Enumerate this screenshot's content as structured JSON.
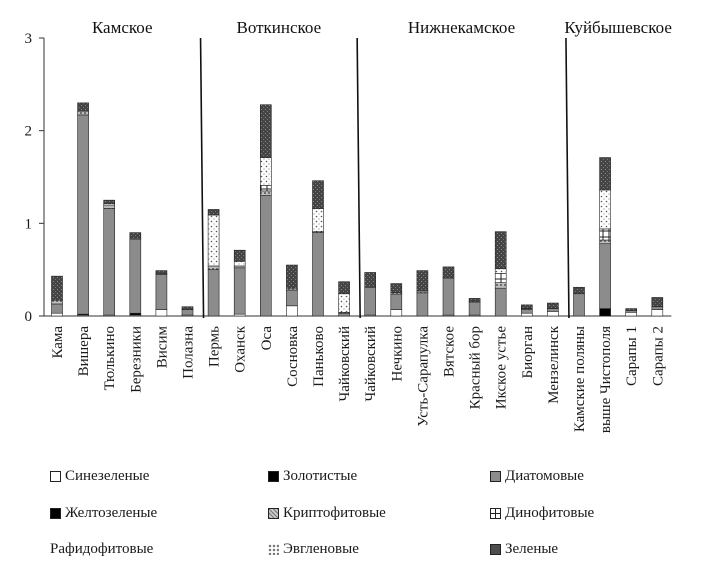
{
  "chart_data": {
    "type": "bar",
    "stacked": true,
    "ylim": [
      0,
      3
    ],
    "yticks": [
      0,
      1,
      2,
      3
    ],
    "categories": [
      "Кама",
      "Вишера",
      "Тюлькино",
      "Березники",
      "Висим",
      "Полазна",
      "Пермь",
      "Оханск",
      "Оса",
      "Сосновка",
      "Паньково",
      "Чайковский",
      "Чайковский",
      "Нечкино",
      "Усть-Сарапулка",
      "Вятское",
      "Красный бор",
      "Икское устье",
      "Биорган",
      "Мензелинск",
      "Камские поляны",
      "выше Чистополя",
      "Сарапы 1",
      "Сарапы 2"
    ],
    "reservoirs": [
      {
        "name": "Камское",
        "start": 0,
        "end": 5
      },
      {
        "name": "Воткинское",
        "start": 6,
        "end": 11
      },
      {
        "name": "Нижнекамское",
        "start": 12,
        "end": 19
      },
      {
        "name": "Куйбышевское",
        "start": 20,
        "end": 23
      }
    ],
    "series": [
      {
        "name": "Синезеленые",
        "color": "#ffffff",
        "pattern": "none",
        "values": [
          0.03,
          0.01,
          0.01,
          0.01,
          0.07,
          0.01,
          0.0,
          0.02,
          0.0,
          0.11,
          0.0,
          0.0,
          0.01,
          0.07,
          0.0,
          0.01,
          0.01,
          0.0,
          0.03,
          0.05,
          0.0,
          0.0,
          0.04,
          0.07
        ]
      },
      {
        "name": "Золотистые",
        "color": "#000000",
        "pattern": "none",
        "values": [
          0.0,
          0.01,
          0.0,
          0.02,
          0.0,
          0.0,
          0.0,
          0.0,
          0.0,
          0.0,
          0.0,
          0.0,
          0.0,
          0.0,
          0.0,
          0.0,
          0.0,
          0.0,
          0.0,
          0.0,
          0.0,
          0.08,
          0.0,
          0.0
        ]
      },
      {
        "name": "Диатомовые",
        "color": "#8c8c8c",
        "pattern": "none",
        "values": [
          0.1,
          2.15,
          1.15,
          0.8,
          0.38,
          0.06,
          0.5,
          0.5,
          1.3,
          0.17,
          0.9,
          0.03,
          0.3,
          0.16,
          0.25,
          0.4,
          0.14,
          0.3,
          0.04,
          0.03,
          0.24,
          0.7,
          0.02,
          0.03
        ]
      },
      {
        "name": "Желтозеленые",
        "color": "#000000",
        "pattern": "none",
        "values": [
          0.0,
          0.0,
          0.0,
          0.0,
          0.0,
          0.0,
          0.0,
          0.0,
          0.0,
          0.0,
          0.0,
          0.0,
          0.0,
          0.0,
          0.0,
          0.0,
          0.0,
          0.0,
          0.0,
          0.0,
          0.0,
          0.0,
          0.0,
          0.0
        ]
      },
      {
        "name": "Криптофитовые",
        "color": "#a6a6a6",
        "pattern": "dots",
        "values": [
          0.04,
          0.04,
          0.03,
          0.01,
          0.01,
          0.0,
          0.04,
          0.02,
          0.05,
          0.02,
          0.01,
          0.01,
          0.0,
          0.02,
          0.02,
          0.0,
          0.01,
          0.06,
          0.01,
          0.0,
          0.0,
          0.04,
          0.0,
          0.0
        ]
      },
      {
        "name": "Динофитовые",
        "color": "#ffffff",
        "pattern": "grid",
        "values": [
          0.0,
          0.0,
          0.0,
          0.0,
          0.0,
          0.0,
          0.0,
          0.0,
          0.06,
          0.0,
          0.0,
          0.0,
          0.0,
          0.0,
          0.0,
          0.0,
          0.0,
          0.1,
          0.0,
          0.0,
          0.0,
          0.12,
          0.0,
          0.0
        ]
      },
      {
        "name": "Рафидофитовые",
        "color": "#ffffff",
        "pattern": "none",
        "values": [
          0.0,
          0.0,
          0.0,
          0.0,
          0.0,
          0.0,
          0.0,
          0.0,
          0.0,
          0.0,
          0.0,
          0.0,
          0.0,
          0.0,
          0.0,
          0.0,
          0.0,
          0.0,
          0.0,
          0.0,
          0.0,
          0.0,
          0.0,
          0.0
        ]
      },
      {
        "name": "Эвгленовые",
        "color": "#ffffff",
        "pattern": "sparse",
        "values": [
          0.0,
          0.0,
          0.02,
          0.0,
          0.0,
          0.0,
          0.55,
          0.05,
          0.3,
          0.0,
          0.25,
          0.2,
          0.0,
          0.0,
          0.0,
          0.0,
          0.0,
          0.05,
          0.0,
          0.0,
          0.0,
          0.42,
          0.0,
          0.0
        ]
      },
      {
        "name": "Зеленые",
        "color": "#4d4d4d",
        "pattern": "stipple",
        "values": [
          0.26,
          0.09,
          0.04,
          0.06,
          0.03,
          0.03,
          0.06,
          0.12,
          0.57,
          0.25,
          0.3,
          0.13,
          0.16,
          0.1,
          0.22,
          0.12,
          0.03,
          0.4,
          0.04,
          0.06,
          0.07,
          0.35,
          0.02,
          0.1
        ]
      }
    ]
  }
}
